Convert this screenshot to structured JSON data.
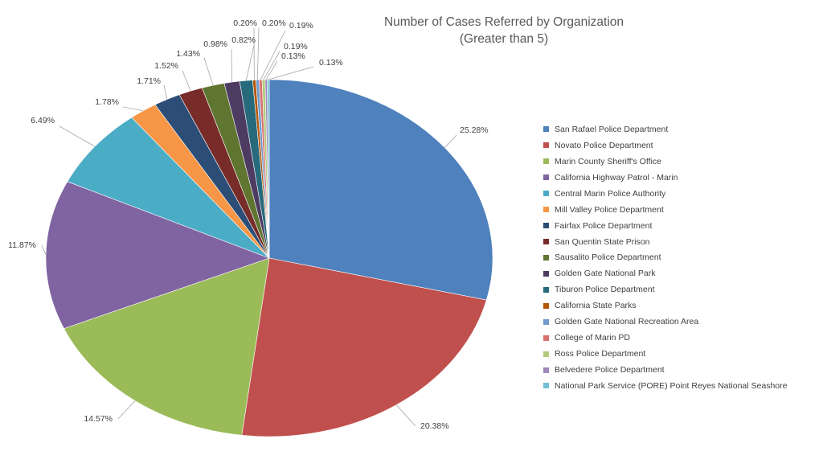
{
  "chart_data": {
    "type": "pie",
    "title": "Number of Cases Referred by Organization",
    "subtitle": "(Greater than 5)",
    "legend_position": "right",
    "slices": [
      {
        "name": "San Rafael Police Department",
        "value": 25.28,
        "label": "25.28%",
        "color": "#4f81bd"
      },
      {
        "name": "Novato Police Department",
        "value": 20.38,
        "label": "20.38%",
        "color": "#c0504d"
      },
      {
        "name": "Marin County Sheriff's Office",
        "value": 14.57,
        "label": "14.57%",
        "color": "#9bbb59"
      },
      {
        "name": "California Highway Patrol - Marin",
        "value": 11.87,
        "label": "11.87%",
        "color": "#8064a2"
      },
      {
        "name": "Central Marin Police Authority",
        "value": 6.49,
        "label": "6.49%",
        "color": "#4bacc6"
      },
      {
        "name": "Mill Valley Police Department",
        "value": 1.78,
        "label": "1.78%",
        "color": "#f79646"
      },
      {
        "name": "Fairfax Police Department",
        "value": 1.71,
        "label": "1.71%",
        "color": "#2c4d75"
      },
      {
        "name": "San Quentin State Prison",
        "value": 1.52,
        "label": "1.52%",
        "color": "#772c2a"
      },
      {
        "name": "Sausalito Police Department",
        "value": 1.43,
        "label": "1.43%",
        "color": "#5f7530"
      },
      {
        "name": "Golden Gate National Park",
        "value": 0.98,
        "label": "0.98%",
        "color": "#4d3b62"
      },
      {
        "name": "Tiburon Police Department",
        "value": 0.82,
        "label": "0.82%",
        "color": "#276a7c"
      },
      {
        "name": "California State Parks",
        "value": 0.2,
        "label": "0.20%",
        "color": "#b65708"
      },
      {
        "name": "Golden Gate National Recreation Area",
        "value": 0.2,
        "label": "0.20%",
        "color": "#729aca"
      },
      {
        "name": "College of Marin PD",
        "value": 0.19,
        "label": "0.19%",
        "color": "#d9716f"
      },
      {
        "name": "Ross Police Department",
        "value": 0.19,
        "label": "0.19%",
        "color": "#b3ca7d"
      },
      {
        "name": "Belvedere Police Department",
        "value": 0.13,
        "label": "0.13%",
        "color": "#9e88b9"
      },
      {
        "name": "National Park Service (PORE) Point Reyes National Seashore",
        "value": 0.13,
        "label": "0.13%",
        "color": "#73bfd4"
      }
    ]
  }
}
